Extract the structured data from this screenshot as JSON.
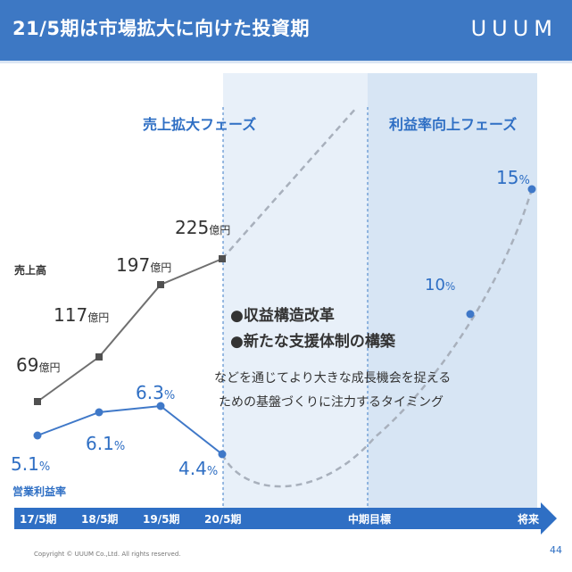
{
  "header": {
    "title": "21/5期は市場拡大に向けた投資期",
    "logo": "UUUM"
  },
  "phases": {
    "phase1": "売上拡大フェーズ",
    "phase2": "利益率向上フェーズ"
  },
  "labels": {
    "sales": "売上高",
    "margin": "営業利益率"
  },
  "sales": {
    "unit": "億円",
    "points": [
      {
        "period": "17/5期",
        "value": "69"
      },
      {
        "period": "18/5期",
        "value": "117"
      },
      {
        "period": "19/5期",
        "value": "197"
      },
      {
        "period": "20/5期",
        "value": "225"
      }
    ]
  },
  "margin": {
    "unit": "%",
    "points": [
      {
        "period": "17/5期",
        "value": "5.1"
      },
      {
        "period": "18/5期",
        "value": "6.1"
      },
      {
        "period": "19/5期",
        "value": "6.3"
      },
      {
        "period": "20/5期",
        "value": "4.4"
      },
      {
        "period": "中期目標",
        "value": "10"
      },
      {
        "period": "将来",
        "value": "15"
      }
    ]
  },
  "bullets": [
    "●収益構造改革",
    "●新たな支援体制の構築"
  ],
  "note": {
    "line1": "などを通じてより大きな成長機会を捉える",
    "line2": "ための基盤づくりに注力するタイミング"
  },
  "timeline": [
    "17/5期",
    "18/5期",
    "19/5期",
    "20/5期",
    "中期目標",
    "将来"
  ],
  "footer": {
    "copyright": "Copyright © UUUM Co.,Ltd. All rights reserved.",
    "page": "44"
  },
  "colors": {
    "header": "#3d78c4",
    "accent": "#2f6fc4",
    "sales_line": "#707070",
    "margin_line": "#3f78c8",
    "dashed": "#a8b0bc"
  }
}
